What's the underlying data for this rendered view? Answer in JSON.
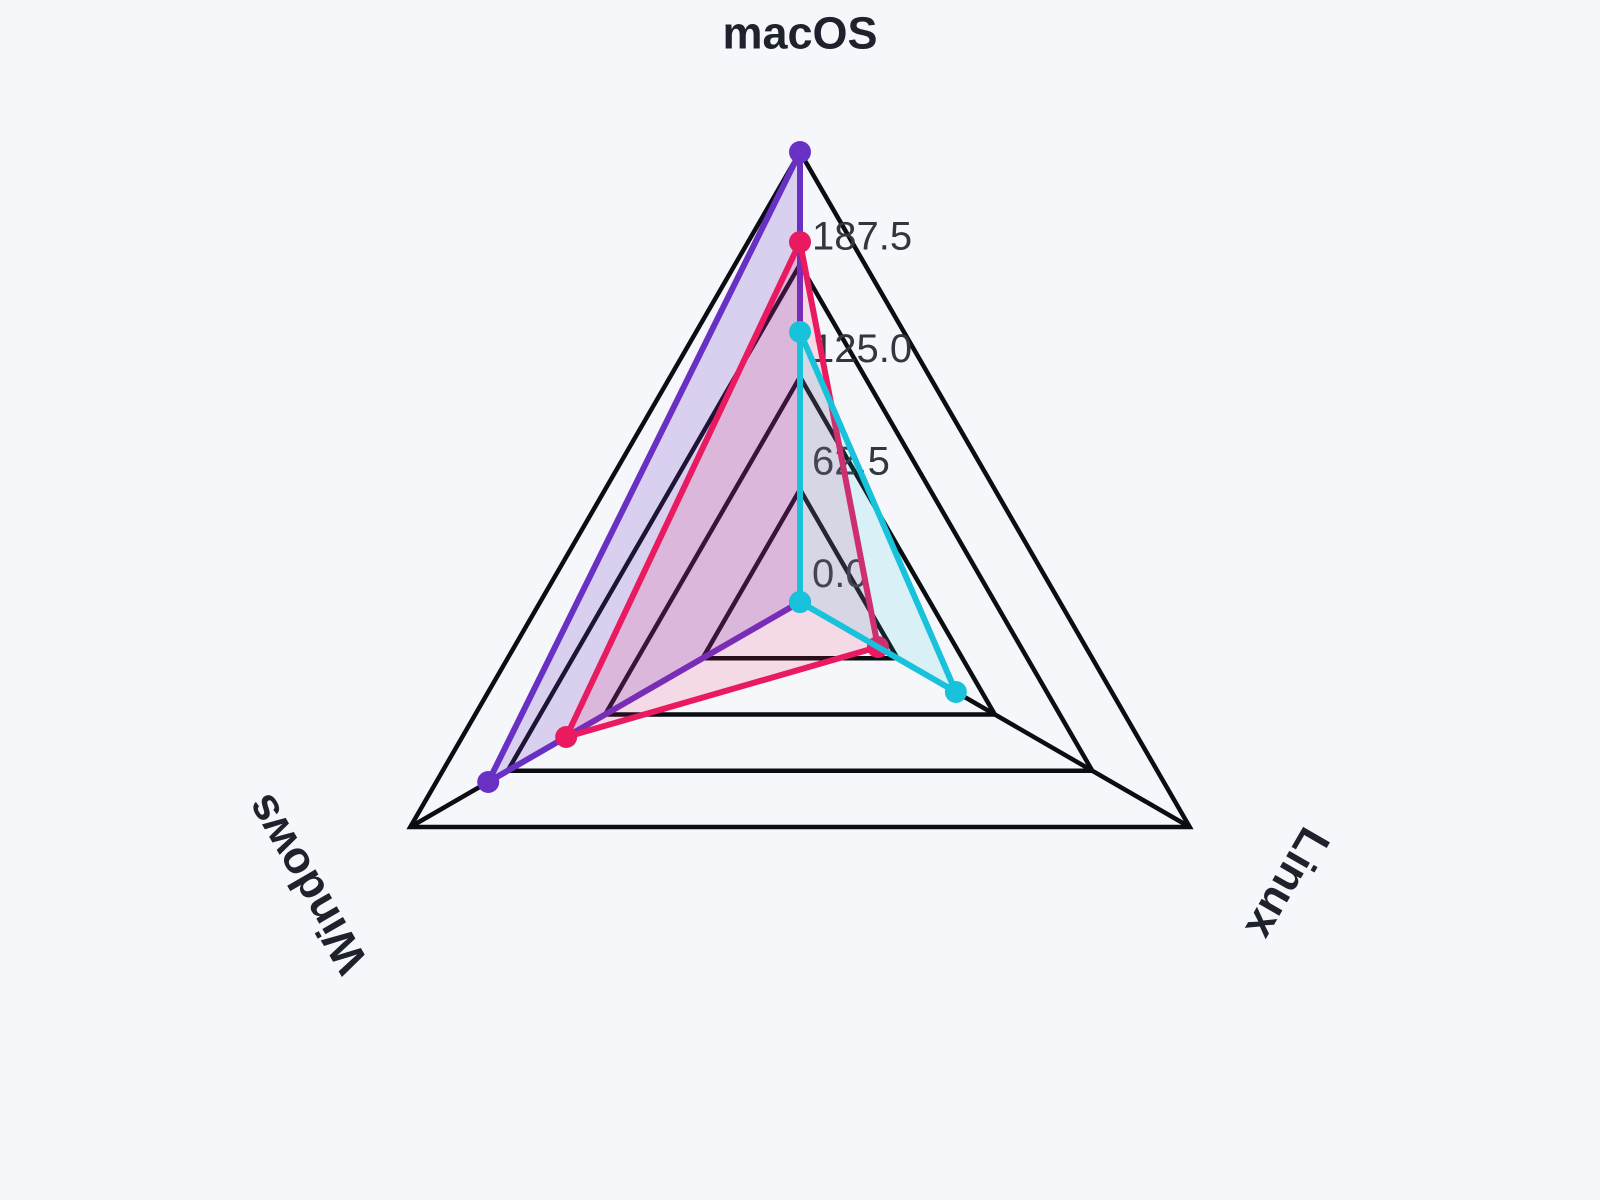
{
  "chart_data": {
    "type": "radar",
    "title": "",
    "categories": [
      "macOS",
      "Windows",
      "Linux"
    ],
    "series": [
      {
        "color": "#6930c4",
        "fill_opacity": 0.2,
        "values": [
          250,
          200,
          0
        ]
      },
      {
        "color": "#e91a60",
        "fill_opacity": 0.13,
        "values": [
          200,
          150,
          50
        ]
      },
      {
        "color": "#19c2db",
        "fill_opacity": 0.13,
        "values": [
          150,
          0,
          100
        ]
      }
    ],
    "radial_axis": {
      "min": 0,
      "max": 250,
      "tick_step": 62.5,
      "tick_labels": [
        "0.0",
        "62.5",
        "125.0",
        "187.5"
      ]
    },
    "legend": false,
    "grid": true,
    "colors": {
      "background": "#f6f7fb",
      "grid_line": "#0c0d12",
      "tick_text": "#34363f",
      "axis_label_text": "#1e222c"
    }
  }
}
